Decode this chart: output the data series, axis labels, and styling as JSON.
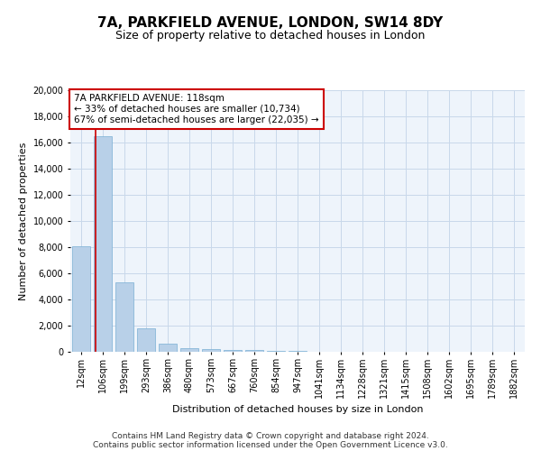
{
  "title_line1": "7A, PARKFIELD AVENUE, LONDON, SW14 8DY",
  "title_line2": "Size of property relative to detached houses in London",
  "xlabel": "Distribution of detached houses by size in London",
  "ylabel": "Number of detached properties",
  "categories": [
    "12sqm",
    "106sqm",
    "199sqm",
    "293sqm",
    "386sqm",
    "480sqm",
    "573sqm",
    "667sqm",
    "760sqm",
    "854sqm",
    "947sqm",
    "1041sqm",
    "1134sqm",
    "1228sqm",
    "1321sqm",
    "1415sqm",
    "1508sqm",
    "1602sqm",
    "1695sqm",
    "1789sqm",
    "1882sqm"
  ],
  "values": [
    8100,
    16500,
    5300,
    1800,
    650,
    300,
    200,
    150,
    150,
    80,
    40,
    20,
    10,
    5,
    5,
    3,
    3,
    2,
    2,
    1,
    1
  ],
  "bar_color": "#b8d0e8",
  "bar_edge_color": "#7aafd4",
  "grid_color": "#c8d8ea",
  "background_color": "#eef4fb",
  "annotation_line1": "7A PARKFIELD AVENUE: 118sqm",
  "annotation_line2": "← 33% of detached houses are smaller (10,734)",
  "annotation_line3": "67% of semi-detached houses are larger (22,035) →",
  "annotation_box_color": "#ffffff",
  "annotation_border_color": "#cc0000",
  "property_line_color": "#cc0000",
  "ylim_max": 20000,
  "yticks": [
    0,
    2000,
    4000,
    6000,
    8000,
    10000,
    12000,
    14000,
    16000,
    18000,
    20000
  ],
  "footer_text1": "Contains HM Land Registry data © Crown copyright and database right 2024.",
  "footer_text2": "Contains public sector information licensed under the Open Government Licence v3.0.",
  "title_fontsize": 11,
  "subtitle_fontsize": 9,
  "axis_label_fontsize": 8,
  "tick_fontsize": 7,
  "annotation_fontsize": 7.5,
  "footer_fontsize": 6.5
}
